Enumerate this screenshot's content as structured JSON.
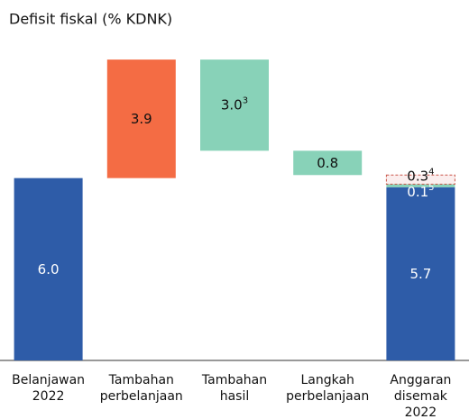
{
  "chart_data": {
    "type": "waterfall",
    "title": "Defisit fiskal (% KDNK)",
    "categories": [
      [
        "Belanjawan",
        "2022"
      ],
      [
        "Tambahan",
        "perbelanjaan"
      ],
      [
        "Tambahan",
        "hasil"
      ],
      [
        "Langkah",
        "perbelanjaan"
      ],
      [
        "Anggaran",
        "disemak",
        "2022"
      ]
    ],
    "ylim": [
      0,
      10.2
    ],
    "bars": [
      {
        "direction": "start",
        "segments": [
          {
            "value": 6.0,
            "label": "6.0",
            "color": "#2e5ca8",
            "text_color": "#ffffff"
          }
        ]
      },
      {
        "direction": "up",
        "segments": [
          {
            "value": 3.9,
            "label": "3.9",
            "color": "#f46c44",
            "text_color": "#111111"
          }
        ]
      },
      {
        "direction": "down",
        "segments": [
          {
            "value": 3.0,
            "label": "3.0",
            "note": "3",
            "color": "#88d2b8",
            "text_color": "#111111"
          }
        ]
      },
      {
        "direction": "down",
        "segments": [
          {
            "value": 0.8,
            "label": "0.8",
            "color": "#88d2b8",
            "text_color": "#111111"
          }
        ]
      },
      {
        "direction": "total",
        "segments": [
          {
            "value": 5.7,
            "label": "5.7",
            "color": "#2e5ca8",
            "text_color": "#ffffff"
          },
          {
            "value": 0.1,
            "label": "0.1",
            "note": "5",
            "color": "#88d2b8",
            "text_color": "#ffffff"
          },
          {
            "value": 0.3,
            "label": "0.3",
            "note": "4",
            "color": "#c9574a",
            "text_color": "#111111",
            "dashed": true
          }
        ]
      }
    ]
  }
}
